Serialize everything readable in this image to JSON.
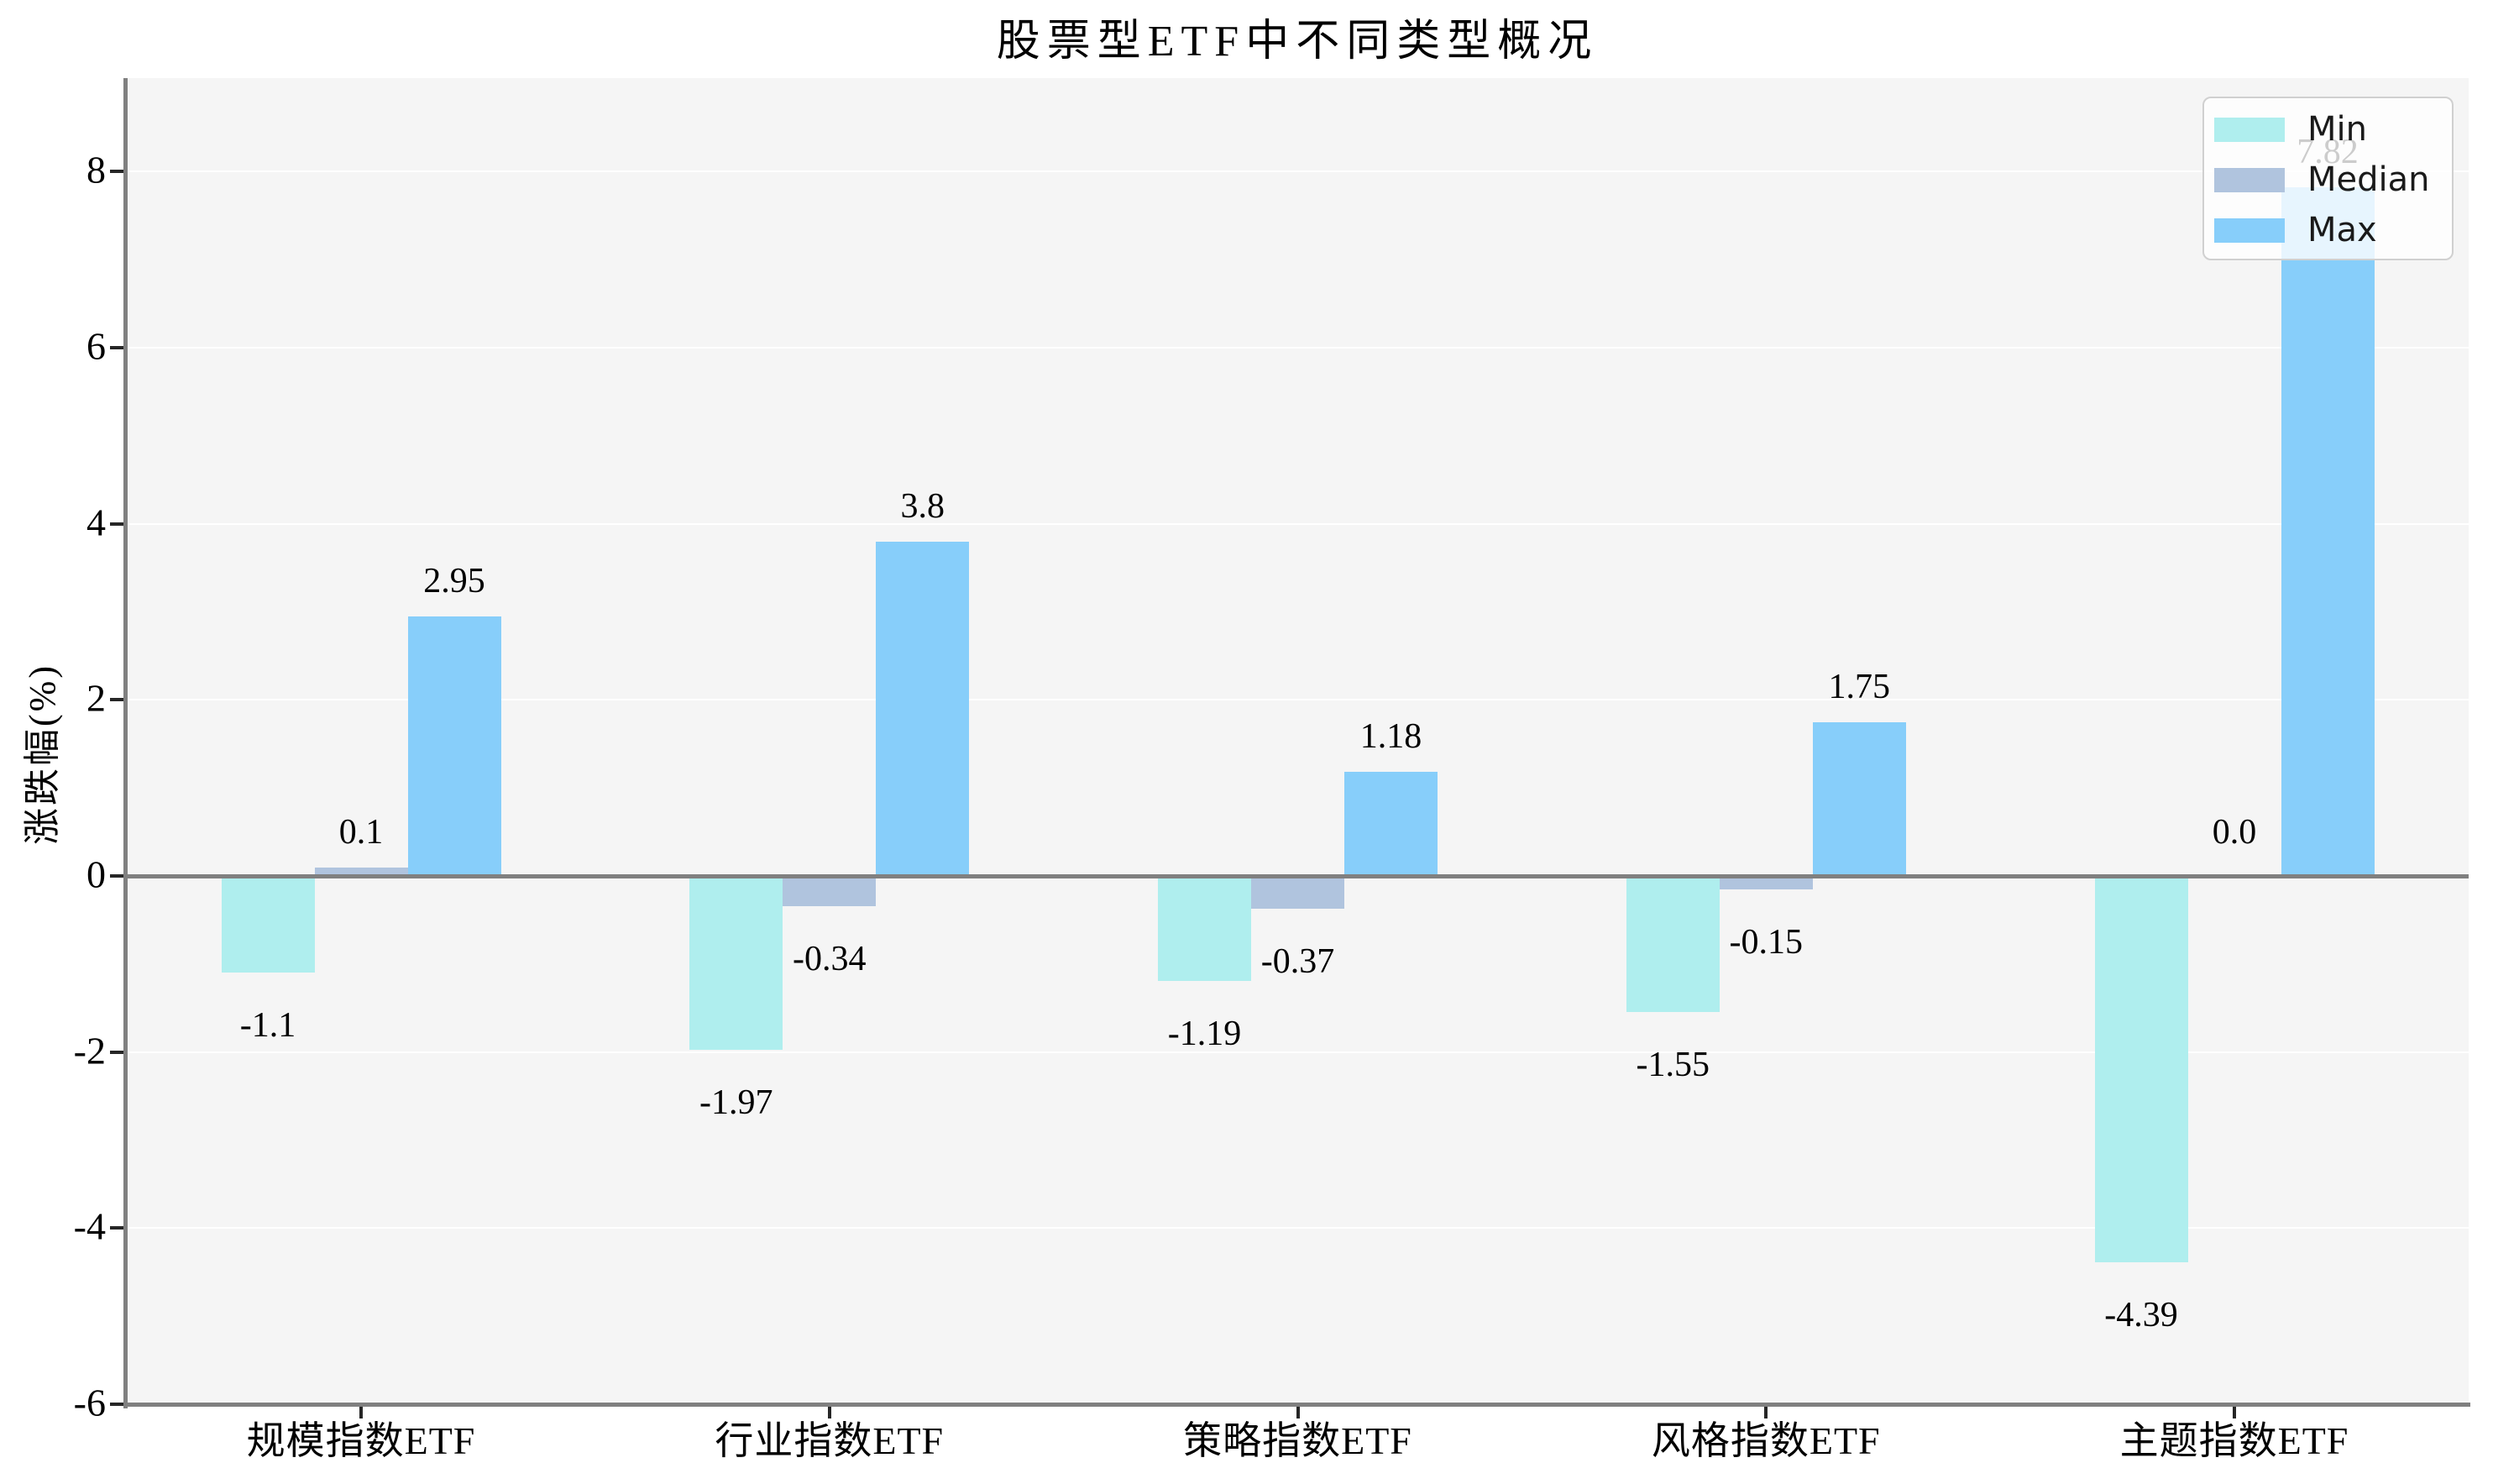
{
  "title": "股票型ETF中不同类型概况",
  "chart_data": {
    "type": "bar",
    "title": "股票型ETF中不同类型概况",
    "xlabel": "",
    "ylabel": "涨跌幅(%)",
    "categories": [
      "规模指数ETF",
      "行业指数ETF",
      "策略指数ETF",
      "风格指数ETF",
      "主题指数ETF"
    ],
    "series": [
      {
        "name": "Min",
        "color": "#AFEEEE",
        "values": [
          -1.1,
          -1.97,
          -1.19,
          -1.55,
          -4.39
        ],
        "labels": [
          "-1.1",
          "-1.97",
          "-1.19",
          "-1.55",
          "-4.39"
        ]
      },
      {
        "name": "Median",
        "color": "#B0C4DE",
        "values": [
          0.1,
          -0.34,
          -0.37,
          -0.15,
          0
        ],
        "labels": [
          "0.1",
          "-0.34",
          "-0.37",
          "-0.15",
          "0.0"
        ]
      },
      {
        "name": "Max",
        "color": "#87CEFA",
        "values": [
          2.95,
          3.8,
          1.18,
          1.75,
          7.82
        ],
        "labels": [
          "2.95",
          "3.8",
          "1.18",
          "1.75",
          "7.82"
        ]
      }
    ],
    "yticks": [
      8,
      6,
      4,
      2,
      0,
      -2,
      -4,
      -6
    ],
    "ylim": [
      -6,
      9.06
    ],
    "grid": true,
    "legend_position": "upper right"
  },
  "colors": {
    "figure_bg": "#ffffff",
    "plot_bg": "#f5f5f5",
    "gridline": "#ffffff",
    "zero_line": "#808080",
    "spine": "#808080",
    "tick": "#262626",
    "text": "#000000",
    "legend_border": "#d0d0d0"
  }
}
